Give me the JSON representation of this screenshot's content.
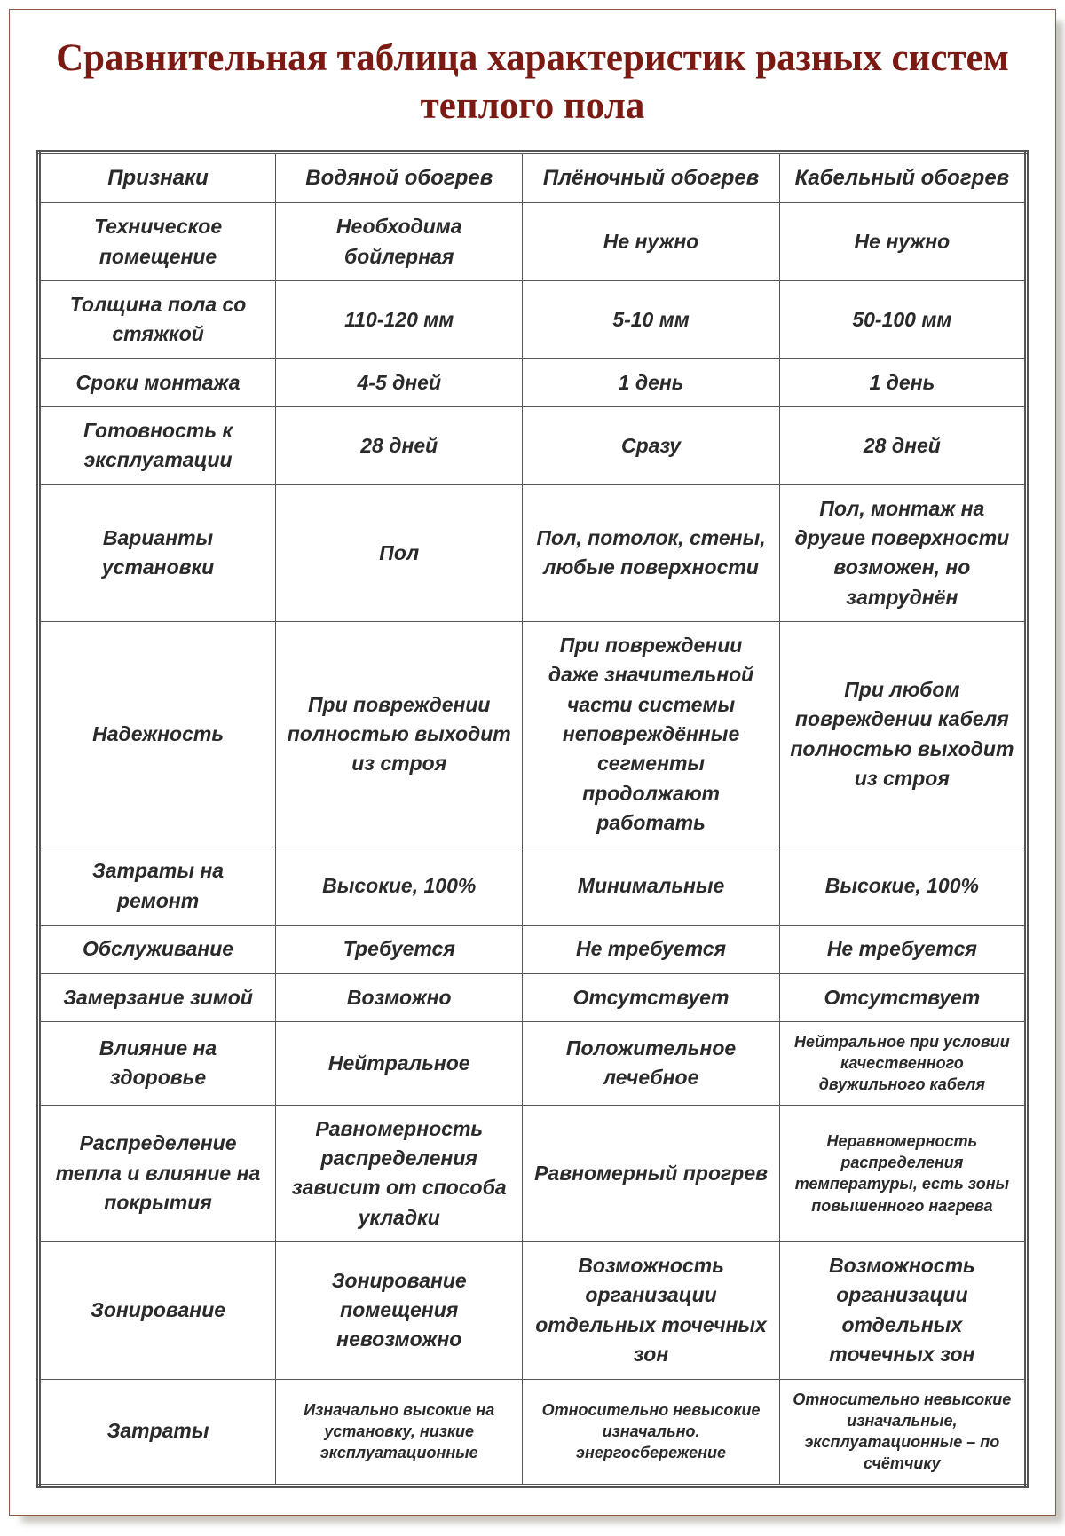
{
  "title": "Сравнительная таблица характеристик разных систем теплого пола",
  "style": {
    "title_color": "#7a1a12",
    "border_color": "#8a5a44",
    "table_border_color": "#555555",
    "text_color": "#2a2a2a",
    "background": "#ffffff",
    "shadow_color": "#c8c4be",
    "title_fontsize": 43,
    "cell_fontsize": 23,
    "small_fontsize": 18,
    "font_family_title": "Georgia, Times New Roman, serif",
    "font_family_body": "Verdana, Geneva, sans-serif"
  },
  "table": {
    "type": "table",
    "columns": [
      "Признаки",
      "Водяной обогрев",
      "Плёночный обогрев",
      "Кабельный обогрев"
    ],
    "col_widths_pct": [
      24,
      25,
      26,
      25
    ],
    "rows": [
      {
        "cells": [
          "Техническое помещение",
          "Необходима бойлерная",
          "Не нужно",
          "Не нужно"
        ],
        "small": [
          false,
          false,
          false,
          false
        ]
      },
      {
        "cells": [
          "Толщина пола со стяжкой",
          "110-120 мм",
          "5-10 мм",
          "50-100 мм"
        ],
        "small": [
          false,
          false,
          false,
          false
        ]
      },
      {
        "cells": [
          "Сроки монтажа",
          "4-5 дней",
          "1 день",
          "1 день"
        ],
        "small": [
          false,
          false,
          false,
          false
        ]
      },
      {
        "cells": [
          "Готовность к эксплуатации",
          "28 дней",
          "Сразу",
          "28 дней"
        ],
        "small": [
          false,
          false,
          false,
          false
        ]
      },
      {
        "cells": [
          "Варианты установки",
          "Пол",
          "Пол, потолок, стены, любые поверхности",
          "Пол, монтаж на другие поверхности возможен, но затруднён"
        ],
        "small": [
          false,
          false,
          false,
          false
        ]
      },
      {
        "cells": [
          "Надежность",
          "При повреждении полностью выходит из строя",
          "При повреждении даже значительной части системы неповреждённые сегменты продолжают работать",
          "При любом повреждении кабеля полностью выходит из строя"
        ],
        "small": [
          false,
          false,
          false,
          false
        ]
      },
      {
        "cells": [
          "Затраты на ремонт",
          "Высокие, 100%",
          "Минимальные",
          "Высокие, 100%"
        ],
        "small": [
          false,
          false,
          false,
          false
        ]
      },
      {
        "cells": [
          "Обслуживание",
          "Требуется",
          "Не требуется",
          "Не требуется"
        ],
        "small": [
          false,
          false,
          false,
          false
        ]
      },
      {
        "cells": [
          "Замерзание зимой",
          "Возможно",
          "Отсутствует",
          "Отсутствует"
        ],
        "small": [
          false,
          false,
          false,
          false
        ]
      },
      {
        "cells": [
          "Влияние на здоровье",
          "Нейтральное",
          "Положительное лечебное",
          "Нейтральное при условии качественного двужильного кабеля"
        ],
        "small": [
          false,
          false,
          false,
          true
        ]
      },
      {
        "cells": [
          "Распределение тепла и влияние на покрытия",
          "Равномерность распределения зависит от способа укладки",
          "Равномерный прогрев",
          "Неравномерность распределения температуры, есть зоны повышенного нагрева"
        ],
        "small": [
          false,
          false,
          false,
          true
        ]
      },
      {
        "cells": [
          "Зонирование",
          "Зонирование помещения невозможно",
          "Возможность организации отдельных точечных зон",
          "Возможность организации отдельных точечных зон"
        ],
        "small": [
          false,
          false,
          false,
          false
        ]
      },
      {
        "cells": [
          "Затраты",
          "Изначально высокие на установку, низкие эксплуатационные",
          "Относительно невысокие изначально. энергосбережение",
          "Относительно невысокие изначальные, эксплуатационные – по счётчику"
        ],
        "small": [
          false,
          true,
          true,
          true
        ]
      }
    ]
  }
}
